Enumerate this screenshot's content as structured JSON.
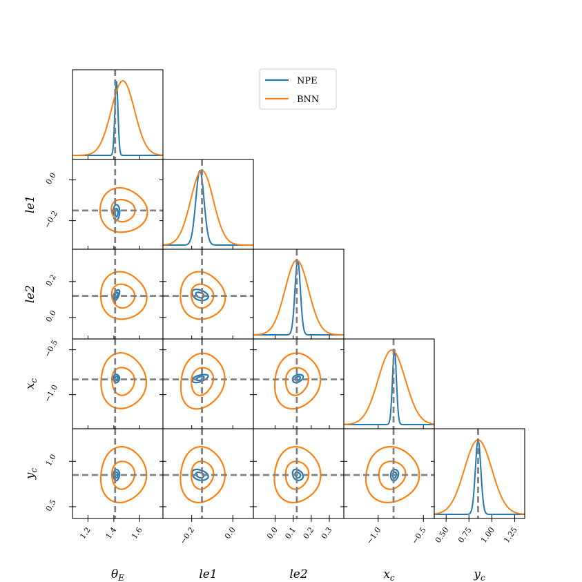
{
  "chart_data": {
    "type": "corner",
    "parameters": [
      {
        "key": "theta_E",
        "label": "θ",
        "sub": "E",
        "range": [
          1.08,
          1.78
        ],
        "ticks": [
          1.2,
          1.4,
          1.6
        ],
        "tick_labels": [
          "1.2",
          "1.4",
          "1.6"
        ],
        "truth": 1.41
      },
      {
        "key": "le1",
        "label": "le1",
        "sub": "",
        "range": [
          -0.34,
          0.1
        ],
        "ticks": [
          -0.2,
          0.0
        ],
        "tick_labels": [
          "−0.2",
          "0.0"
        ],
        "truth": -0.15
      },
      {
        "key": "le2",
        "label": "le2",
        "sub": "",
        "range": [
          -0.12,
          0.38
        ],
        "ticks": [
          0.0,
          0.1,
          0.2,
          0.3
        ],
        "tick_labels": [
          "0.0",
          "0.1",
          "0.2",
          "0.3"
        ],
        "truth": 0.12
      },
      {
        "key": "x_c",
        "label": "x",
        "sub": "c",
        "range": [
          -1.38,
          -0.38
        ],
        "ticks": [
          -1.0,
          -0.5
        ],
        "tick_labels": [
          "−1.0",
          "−0.5"
        ],
        "truth": -0.83
      },
      {
        "key": "y_c",
        "label": "y",
        "sub": "c",
        "range": [
          0.37,
          1.36
        ],
        "ticks": [
          0.5,
          0.75,
          1.0,
          1.25
        ],
        "tick_labels": [
          "0.50",
          "0.75",
          "1.00",
          "1.25"
        ],
        "truth": 0.85
      }
    ],
    "row_tick_labels": {
      "le1": [
        "0.0",
        "−0.2"
      ],
      "le2": [
        "0.2",
        "0.0"
      ],
      "x_c": [
        "−0.5",
        "−1.0"
      ],
      "y_c": [
        "1.0",
        "0.5"
      ]
    },
    "row_ticks": {
      "le1": [
        0.0,
        -0.2
      ],
      "le2": [
        0.2,
        0.0
      ],
      "x_c": [
        -0.5,
        -1.0
      ],
      "y_c": [
        1.0,
        0.5
      ]
    },
    "series": [
      {
        "name": "NPE",
        "color": "#1f77b4",
        "mean": [
          1.42,
          -0.16,
          0.125,
          -0.82,
          0.85
        ],
        "std": [
          0.012,
          0.02,
          0.015,
          0.022,
          0.03
        ],
        "corr": {
          "1,0": 0.1,
          "2,0": 0.55,
          "2,1": -0.3,
          "3,0": 0.0,
          "3,1": 0.55,
          "3,2": 0.35,
          "4,0": 0.0,
          "4,1": -0.35,
          "4,2": -0.3,
          "4,3": 0.1
        }
      },
      {
        "name": "BNN",
        "color": "#ff7f0e",
        "mean": [
          1.47,
          -0.15,
          0.12,
          -0.85,
          0.85
        ],
        "std": [
          0.09,
          0.055,
          0.065,
          0.15,
          0.15
        ],
        "corr": {
          "1,0": 0.0,
          "2,0": 0.0,
          "2,1": 0.0,
          "3,0": 0.0,
          "3,1": 0.15,
          "3,2": 0.1,
          "4,0": 0.0,
          "4,1": 0.0,
          "4,2": 0.0,
          "4,3": 0.0
        }
      }
    ],
    "truth_color": "#808080",
    "legend_position": "upper-center",
    "legend": [
      "NPE",
      "BNN"
    ]
  }
}
